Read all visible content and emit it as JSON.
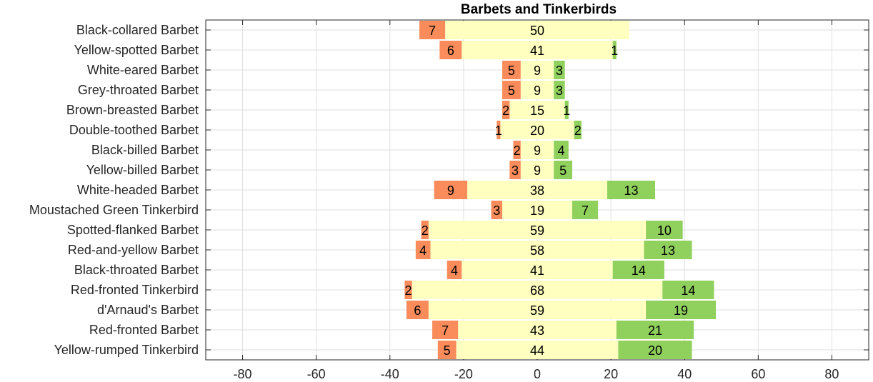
{
  "chart_data": {
    "type": "bar",
    "orientation": "horizontal-stacked-diverging",
    "title": "Barbets and Tinkerbirds",
    "xlabel": "",
    "ylabel": "",
    "xlim": [
      -90,
      90
    ],
    "xticks": [
      -80,
      -60,
      -40,
      -20,
      0,
      20,
      40,
      60,
      80
    ],
    "xtick_labels": [
      "-80",
      "-60",
      "-40",
      "-20",
      "0",
      "20",
      "40",
      "60",
      "80"
    ],
    "grid": true,
    "legend": "none",
    "categories": [
      "Black-collared Barbet",
      "Yellow-spotted Barbet",
      "White-eared Barbet",
      "Grey-throated Barbet",
      "Brown-breasted Barbet",
      "Double-toothed Barbet",
      "Black-billed Barbet",
      "Yellow-billed Barbet",
      "White-headed Barbet",
      "Moustached Green Tinkerbird",
      "Spotted-flanked Barbet",
      "Red-and-yellow Barbet",
      "Black-throated Barbet",
      "Red-fronted Tinkerbird",
      "d'Arnaud's Barbet",
      "Red-fronted Barbet",
      "Yellow-rumped Tinkerbird"
    ],
    "series": [
      {
        "color": "#f98c5a",
        "values": [
          7,
          6,
          5,
          5,
          2,
          1,
          2,
          3,
          9,
          3,
          2,
          4,
          4,
          2,
          6,
          7,
          5
        ]
      },
      {
        "color": "#ffffc0",
        "values": [
          50,
          41,
          9,
          9,
          15,
          20,
          9,
          9,
          38,
          19,
          59,
          58,
          41,
          68,
          59,
          43,
          44
        ]
      },
      {
        "color": "#90d05c",
        "values": [
          0,
          1,
          3,
          3,
          1,
          2,
          4,
          5,
          13,
          7,
          10,
          13,
          14,
          14,
          19,
          21,
          20
        ]
      }
    ],
    "zero_labels_shown": [
      "50"
    ]
  }
}
